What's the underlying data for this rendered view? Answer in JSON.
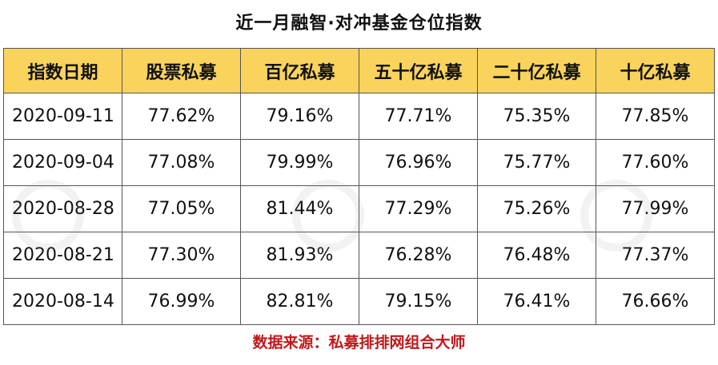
{
  "title": "近一月融智·对冲基金仓位指数",
  "table": {
    "headers": [
      "指数日期",
      "股票私募",
      "百亿私募",
      "五十亿私募",
      "二十亿私募",
      "十亿私募"
    ],
    "rows": [
      [
        "2020-09-11",
        "77.62%",
        "79.16%",
        "77.71%",
        "75.35%",
        "77.85%"
      ],
      [
        "2020-09-04",
        "77.08%",
        "79.99%",
        "76.96%",
        "75.77%",
        "77.60%"
      ],
      [
        "2020-08-28",
        "77.05%",
        "81.44%",
        "77.29%",
        "75.26%",
        "77.99%"
      ],
      [
        "2020-08-21",
        "77.30%",
        "81.93%",
        "76.28%",
        "76.48%",
        "77.37%"
      ],
      [
        "2020-08-14",
        "76.99%",
        "82.81%",
        "79.15%",
        "76.41%",
        "76.66%"
      ]
    ]
  },
  "source": "数据来源：私募排排网组合大师",
  "colors": {
    "header_bg": "#f9d35c",
    "source_text": "#c0191b"
  }
}
